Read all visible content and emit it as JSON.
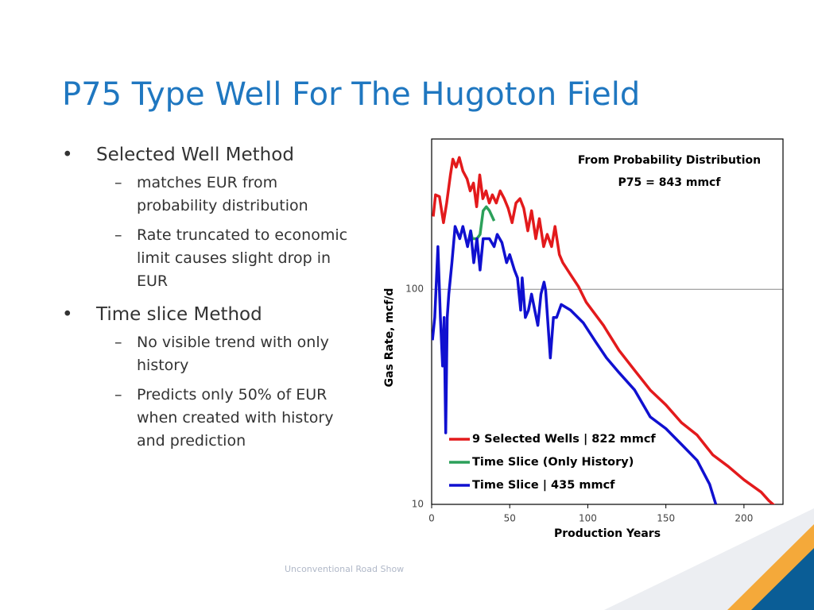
{
  "slide": {
    "title": "P75 Type Well For The Hugoton Field",
    "bullets": [
      {
        "text": "Selected Well Method",
        "sub": [
          "matches EUR from probability distribution",
          "Rate truncated to economic limit causes slight drop in EUR"
        ]
      },
      {
        "text": "Time slice Method",
        "sub": [
          "No visible trend with only history",
          "Predicts only 50% of EUR when created with history and prediction"
        ]
      }
    ],
    "footer": "Unconventional Road Show"
  },
  "chart_data": {
    "type": "line",
    "annotation": [
      "From Probability Distribution",
      "P75 = 843 mmcf"
    ],
    "xlabel": "Production Years",
    "ylabel": "Gas Rate, mcf/d",
    "xlim": [
      0,
      225
    ],
    "xticks": [
      0,
      50,
      100,
      150,
      200
    ],
    "ylim": [
      10,
      500
    ],
    "yticks": [
      10,
      100
    ],
    "log_y": true,
    "grid": true,
    "series": [
      {
        "name": "9 Selected Wells | 822 mmcf",
        "color": "#e31a1c",
        "x": [
          1,
          2.5,
          5,
          7.6,
          9.6,
          12,
          13.6,
          15.7,
          17.7,
          20,
          22.7,
          24.7,
          26.8,
          28.8,
          30.8,
          32.8,
          34.8,
          36.9,
          38.9,
          41.4,
          43.9,
          46.5,
          49,
          51.5,
          54,
          56.6,
          59,
          61.6,
          64,
          66.7,
          69,
          71.7,
          74,
          76.8,
          79,
          81.8,
          84,
          89,
          94,
          99,
          110,
          120,
          130,
          140,
          150,
          160,
          170,
          180,
          190,
          200,
          211,
          216,
          220
        ],
        "values": [
          218,
          275,
          270,
          204,
          252,
          340,
          403,
          370,
          410,
          355,
          326,
          287,
          312,
          242,
          340,
          264,
          287,
          252,
          275,
          252,
          287,
          264,
          238,
          204,
          252,
          264,
          238,
          187,
          232,
          172,
          213,
          158,
          180,
          158,
          196,
          145,
          133,
          117,
          103,
          87,
          68,
          52,
          42,
          34,
          29,
          24,
          21,
          17,
          15,
          13,
          11.4,
          10.4,
          9.8
        ]
      },
      {
        "name": "Time Slice (Only History)",
        "color": "#2ca05a",
        "x": [
          25,
          26,
          29,
          31,
          33,
          35,
          37,
          40
        ],
        "values": [
          187,
          172,
          172,
          180,
          232,
          242,
          232,
          208
        ]
      },
      {
        "name": "Time Slice | 435 mmcf",
        "color": "#1010d0",
        "x": [
          0.5,
          2,
          4,
          5.6,
          7,
          8,
          9,
          10,
          11,
          13,
          15,
          18,
          20,
          23,
          25,
          27,
          29,
          31,
          33,
          35,
          37,
          40,
          42,
          45,
          48,
          50,
          53,
          55,
          57,
          58,
          60,
          62,
          64,
          66,
          68,
          70,
          72,
          73,
          76,
          78,
          80,
          83,
          89,
          97,
          105,
          112,
          120,
          130,
          140,
          150,
          160,
          170,
          178,
          182
        ],
        "values": [
          58,
          74,
          158,
          74,
          44,
          74,
          21.5,
          74,
          95,
          133,
          196,
          172,
          196,
          158,
          187,
          133,
          172,
          123,
          172,
          172,
          172,
          158,
          180,
          165,
          133,
          145,
          123,
          113,
          80,
          113,
          74,
          80,
          95,
          80,
          68,
          95,
          108,
          99,
          48,
          74,
          74,
          85,
          80,
          70,
          57,
          48,
          41,
          34,
          25.5,
          22.5,
          19,
          16,
          12.4,
          10
        ]
      }
    ]
  }
}
